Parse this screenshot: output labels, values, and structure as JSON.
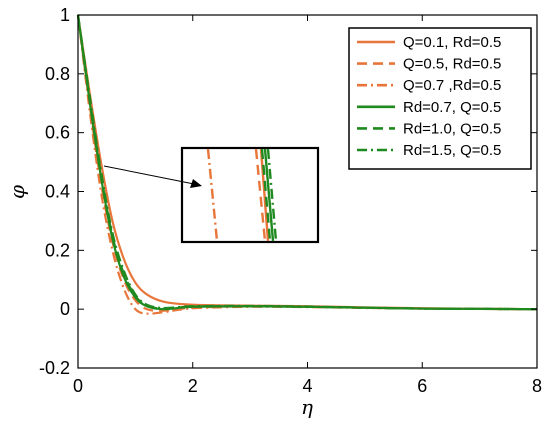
{
  "chart_data": {
    "type": "line",
    "title": "",
    "xlabel": "η",
    "ylabel": "φ",
    "xlim": [
      0,
      8
    ],
    "ylim": [
      -0.2,
      1
    ],
    "xticks": [
      "0",
      "2",
      "4",
      "6",
      "8"
    ],
    "yticks": [
      "-0.2",
      "0",
      "0.2",
      "0.4",
      "0.6",
      "0.8",
      "1"
    ],
    "grid": false,
    "legend_position": "top-right",
    "colors": {
      "orange": "#e8763a",
      "green": "#1f8a1f"
    },
    "series": [
      {
        "name": "Q=0.1, Rd=0.5",
        "color": "#e8763a",
        "dash": "solid",
        "x": [
          0,
          0.2,
          0.4,
          0.6,
          0.8,
          1.0,
          1.2,
          1.5,
          2.0,
          3.0,
          4.0,
          5.0,
          6.0,
          7.0,
          8.0
        ],
        "y": [
          1,
          0.74,
          0.5,
          0.3,
          0.17,
          0.09,
          0.05,
          0.025,
          0.015,
          0.012,
          0.01,
          0.006,
          0.003,
          0.001,
          0
        ]
      },
      {
        "name": "Q=0.5, Rd=0.5",
        "color": "#e8763a",
        "dash": "dashed",
        "x": [
          0,
          0.2,
          0.4,
          0.6,
          0.8,
          1.0,
          1.2,
          1.5,
          2.0,
          3.0,
          4.0,
          5.0,
          6.0,
          7.0,
          8.0
        ],
        "y": [
          1,
          0.7,
          0.43,
          0.23,
          0.1,
          0.03,
          0.0,
          -0.005,
          0.005,
          0.01,
          0.008,
          0.005,
          0.002,
          0.001,
          0
        ]
      },
      {
        "name": "Q=0.7 ,Rd=0.5",
        "color": "#e8763a",
        "dash": "dashdot",
        "x": [
          0,
          0.2,
          0.4,
          0.6,
          0.8,
          1.0,
          1.2,
          1.5,
          2.0,
          3.0,
          4.0,
          5.0,
          6.0,
          7.0,
          8.0
        ],
        "y": [
          1,
          0.68,
          0.4,
          0.2,
          0.07,
          0.0,
          -0.015,
          -0.01,
          0.003,
          0.008,
          0.007,
          0.004,
          0.002,
          0.001,
          0
        ]
      },
      {
        "name": "Rd=0.7, Q=0.5",
        "color": "#1f8a1f",
        "dash": "solid",
        "x": [
          0,
          0.2,
          0.4,
          0.6,
          0.8,
          1.0,
          1.2,
          1.5,
          2.0,
          3.0,
          4.0,
          5.0,
          6.0,
          7.0,
          8.0
        ],
        "y": [
          1,
          0.71,
          0.45,
          0.24,
          0.11,
          0.04,
          0.01,
          0.0,
          0.008,
          0.01,
          0.008,
          0.005,
          0.002,
          0.001,
          0
        ]
      },
      {
        "name": "Rd=1.0, Q=0.5",
        "color": "#1f8a1f",
        "dash": "dashed",
        "x": [
          0,
          0.2,
          0.4,
          0.6,
          0.8,
          1.0,
          1.2,
          1.5,
          2.0,
          3.0,
          4.0,
          5.0,
          6.0,
          7.0,
          8.0
        ],
        "y": [
          1,
          0.72,
          0.46,
          0.25,
          0.12,
          0.045,
          0.012,
          0.002,
          0.009,
          0.01,
          0.008,
          0.005,
          0.002,
          0.001,
          0
        ]
      },
      {
        "name": "Rd=1.5, Q=0.5",
        "color": "#1f8a1f",
        "dash": "dashdot",
        "x": [
          0,
          0.2,
          0.4,
          0.6,
          0.8,
          1.0,
          1.2,
          1.5,
          2.0,
          3.0,
          4.0,
          5.0,
          6.0,
          7.0,
          8.0
        ],
        "y": [
          1,
          0.73,
          0.47,
          0.26,
          0.13,
          0.05,
          0.015,
          0.004,
          0.01,
          0.011,
          0.009,
          0.005,
          0.002,
          0.001,
          0
        ]
      }
    ],
    "annotations": [
      {
        "type": "inset_zoom",
        "description_hidden": true
      }
    ]
  }
}
